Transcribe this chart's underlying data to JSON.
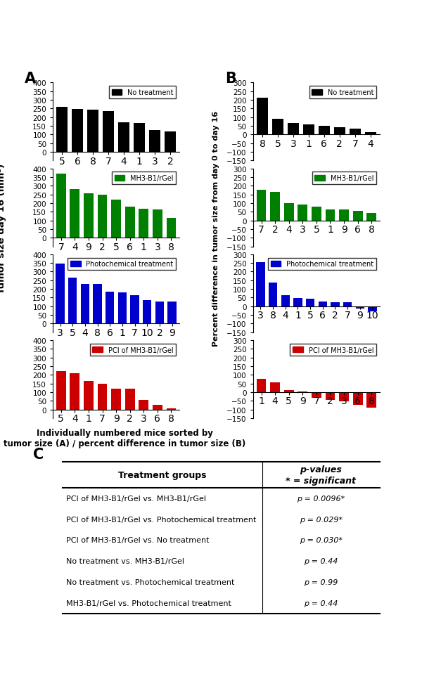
{
  "A_no_treatment": {
    "mice": [
      5,
      6,
      8,
      7,
      4,
      1,
      3,
      2
    ],
    "values": [
      258,
      248,
      243,
      237,
      170,
      165,
      128,
      118
    ],
    "color": "#000000",
    "label": "No treatment",
    "ylim": [
      -50,
      400
    ],
    "yticks": [
      0,
      50,
      100,
      150,
      200,
      250,
      300,
      350,
      400
    ]
  },
  "A_mh3": {
    "mice": [
      7,
      4,
      9,
      2,
      5,
      6,
      1,
      3,
      8
    ],
    "values": [
      370,
      280,
      255,
      247,
      220,
      178,
      168,
      165,
      115
    ],
    "color": "#008000",
    "label": "MH3-B1/rGel",
    "ylim": [
      -50,
      400
    ],
    "yticks": [
      0,
      50,
      100,
      150,
      200,
      250,
      300,
      350,
      400
    ]
  },
  "A_photo": {
    "mice": [
      3,
      5,
      4,
      8,
      6,
      1,
      7,
      10,
      2,
      9
    ],
    "values": [
      347,
      265,
      230,
      227,
      185,
      178,
      163,
      137,
      128,
      128
    ],
    "color": "#0000CC",
    "label": "Photochemical treatment",
    "ylim": [
      -50,
      400
    ],
    "yticks": [
      0,
      50,
      100,
      150,
      200,
      250,
      300,
      350,
      400
    ]
  },
  "A_pci": {
    "mice": [
      5,
      4,
      1,
      7,
      9,
      2,
      3,
      6,
      8
    ],
    "values": [
      222,
      208,
      163,
      150,
      120,
      119,
      55,
      25,
      5
    ],
    "color": "#CC0000",
    "label": "PCI of MH3-B1/rGel",
    "ylim": [
      -50,
      400
    ],
    "yticks": [
      0,
      50,
      100,
      150,
      200,
      250,
      300,
      350,
      400
    ]
  },
  "B_no_treatment": {
    "mice": [
      8,
      5,
      3,
      1,
      6,
      2,
      7,
      4
    ],
    "values": [
      213,
      90,
      65,
      58,
      50,
      42,
      33,
      12
    ],
    "color": "#000000",
    "label": "No treatment",
    "ylim": [
      -150,
      300
    ],
    "yticks": [
      -150,
      -100,
      -50,
      0,
      50,
      100,
      150,
      200,
      250,
      300
    ]
  },
  "B_mh3": {
    "mice": [
      7,
      2,
      4,
      3,
      5,
      1,
      9,
      6,
      8
    ],
    "values": [
      178,
      165,
      100,
      90,
      78,
      65,
      62,
      55,
      42
    ],
    "color": "#008000",
    "label": "MH3-B1/rGel",
    "ylim": [
      -150,
      300
    ],
    "yticks": [
      -150,
      -100,
      -50,
      0,
      50,
      100,
      150,
      200,
      250,
      300
    ]
  },
  "B_photo": {
    "mice": [
      3,
      8,
      4,
      1,
      5,
      6,
      2,
      7,
      9,
      10
    ],
    "values": [
      255,
      138,
      65,
      48,
      45,
      27,
      25,
      22,
      -15,
      -30
    ],
    "color": "#0000CC",
    "label": "Photochemical treatment",
    "ylim": [
      -150,
      300
    ],
    "yticks": [
      -150,
      -100,
      -50,
      0,
      50,
      100,
      150,
      200,
      250,
      300
    ]
  },
  "B_pci": {
    "mice": [
      1,
      4,
      5,
      9,
      7,
      2,
      3,
      6,
      8
    ],
    "values": [
      75,
      55,
      10,
      5,
      -35,
      -45,
      -55,
      -75,
      -90
    ],
    "color": "#CC0000",
    "label": "PCI of MH3-B1/rGel",
    "ylim": [
      -150,
      300
    ],
    "yticks": [
      -150,
      -100,
      -50,
      0,
      50,
      100,
      150,
      200,
      250,
      300
    ]
  },
  "table_rows": [
    [
      "PCI of MH3-B1/rGel vs. MH3-B1/rGel",
      "p = 0.0096*"
    ],
    [
      "PCI of MH3-B1/rGel vs. Photochemical treatment",
      "p = 0.029*"
    ],
    [
      "PCI of MH3-B1/rGel vs. No treatment",
      "p = 0.030*"
    ],
    [
      "No treatment vs. MH3-B1/rGel",
      "p = 0.44"
    ],
    [
      "No treatment vs. Photochemical treatment",
      "p = 0.99"
    ],
    [
      "MH3-B1/rGel vs. Photochemical treatment",
      "p = 0.44"
    ]
  ],
  "col_header_left": "Treatment groups",
  "col_header_right": "p-values\n* = significant",
  "ylabel_A": "Tumor size day 16 (mm³)",
  "ylabel_B": "Percent difference in tumor size from day 0 to day 16",
  "xlabel": "Individually numbered mice sorted by\ntumor size (A) / percent difference in tumor size (B)",
  "panel_A_label": "A",
  "panel_B_label": "B",
  "panel_C_label": "C"
}
